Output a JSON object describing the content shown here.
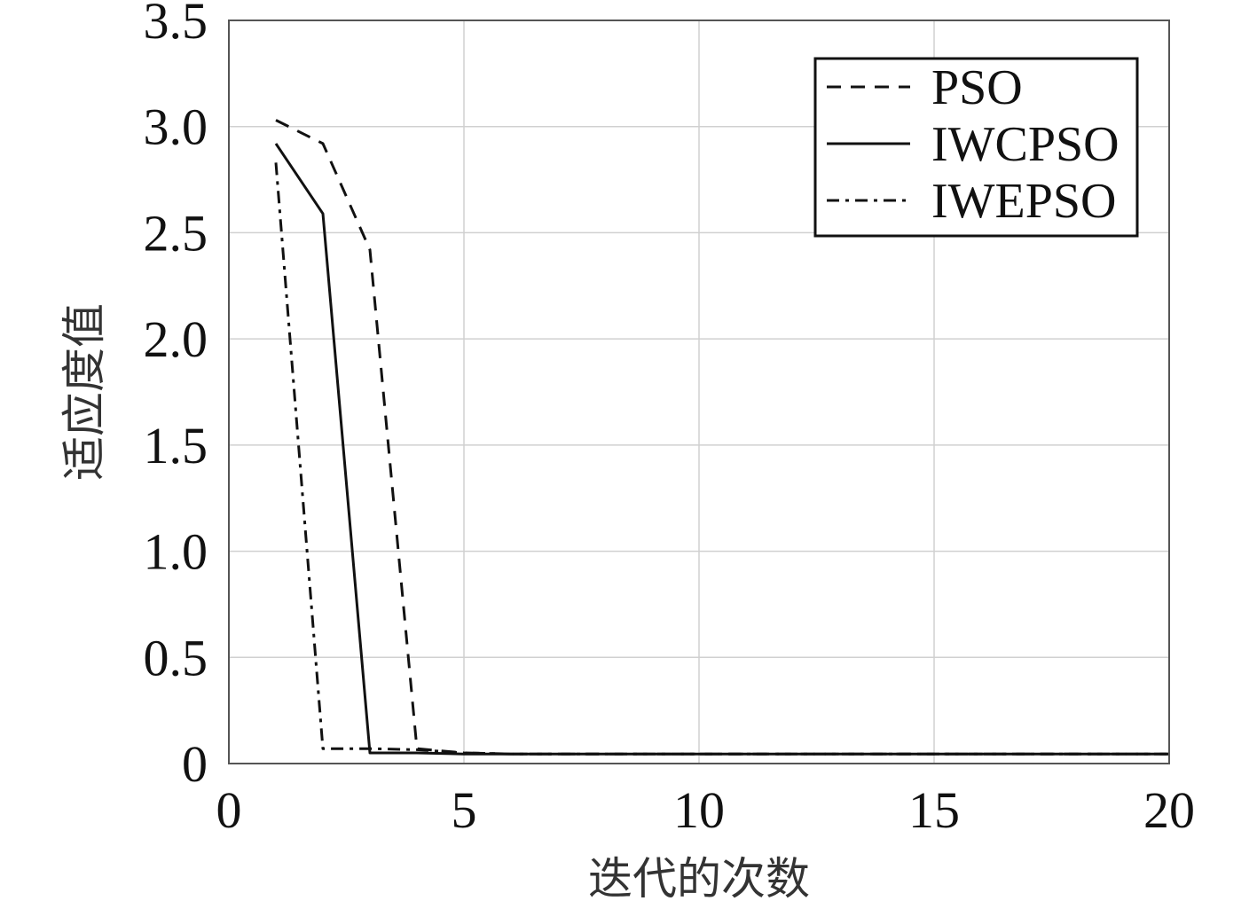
{
  "chart_data": {
    "type": "line",
    "xlabel": "迭代的次数",
    "ylabel": "适应度值",
    "xlim": [
      0,
      20
    ],
    "ylim": [
      0,
      3.5
    ],
    "grid": true,
    "legend_position": "top-right",
    "x_ticks": [
      0,
      5,
      10,
      15,
      20
    ],
    "x_tick_labels": [
      "0",
      "5",
      "10",
      "15",
      "20"
    ],
    "y_ticks": [
      0,
      0.5,
      1.0,
      1.5,
      2.0,
      2.5,
      3.0,
      3.5
    ],
    "y_tick_labels": [
      "0",
      "0.5",
      "1.0",
      "1.5",
      "2.0",
      "2.5",
      "3.0",
      "3.5"
    ],
    "series": [
      {
        "name": "PSO",
        "line_style": "dashed",
        "color": "#111111",
        "points": [
          [
            1,
            3.03
          ],
          [
            2,
            2.92
          ],
          [
            3,
            2.42
          ],
          [
            4,
            0.07
          ],
          [
            5,
            0.05
          ],
          [
            6,
            0.045
          ],
          [
            7,
            0.045
          ],
          [
            8,
            0.045
          ],
          [
            9,
            0.045
          ],
          [
            10,
            0.045
          ],
          [
            11,
            0.045
          ],
          [
            12,
            0.045
          ],
          [
            13,
            0.045
          ],
          [
            14,
            0.045
          ],
          [
            15,
            0.045
          ],
          [
            16,
            0.045
          ],
          [
            17,
            0.045
          ],
          [
            18,
            0.045
          ],
          [
            19,
            0.045
          ],
          [
            20,
            0.045
          ]
        ]
      },
      {
        "name": "IWCPSO",
        "line_style": "solid",
        "color": "#111111",
        "points": [
          [
            1,
            2.92
          ],
          [
            2,
            2.59
          ],
          [
            3,
            0.05
          ],
          [
            4,
            0.05
          ],
          [
            5,
            0.045
          ],
          [
            6,
            0.045
          ],
          [
            7,
            0.045
          ],
          [
            8,
            0.045
          ],
          [
            9,
            0.045
          ],
          [
            10,
            0.045
          ],
          [
            11,
            0.045
          ],
          [
            12,
            0.045
          ],
          [
            13,
            0.045
          ],
          [
            14,
            0.045
          ],
          [
            15,
            0.045
          ],
          [
            16,
            0.045
          ],
          [
            17,
            0.045
          ],
          [
            18,
            0.045
          ],
          [
            19,
            0.045
          ],
          [
            20,
            0.045
          ]
        ]
      },
      {
        "name": "IWEPSO",
        "line_style": "dashdot",
        "color": "#111111",
        "points": [
          [
            1,
            2.83
          ],
          [
            2,
            0.07
          ],
          [
            3,
            0.07
          ],
          [
            4,
            0.065
          ],
          [
            5,
            0.05
          ],
          [
            6,
            0.045
          ],
          [
            7,
            0.045
          ],
          [
            8,
            0.045
          ],
          [
            9,
            0.045
          ],
          [
            10,
            0.045
          ],
          [
            11,
            0.045
          ],
          [
            12,
            0.045
          ],
          [
            13,
            0.045
          ],
          [
            14,
            0.045
          ],
          [
            15,
            0.045
          ],
          [
            16,
            0.045
          ],
          [
            17,
            0.045
          ],
          [
            18,
            0.045
          ],
          [
            19,
            0.045
          ],
          [
            20,
            0.045
          ]
        ]
      }
    ]
  }
}
